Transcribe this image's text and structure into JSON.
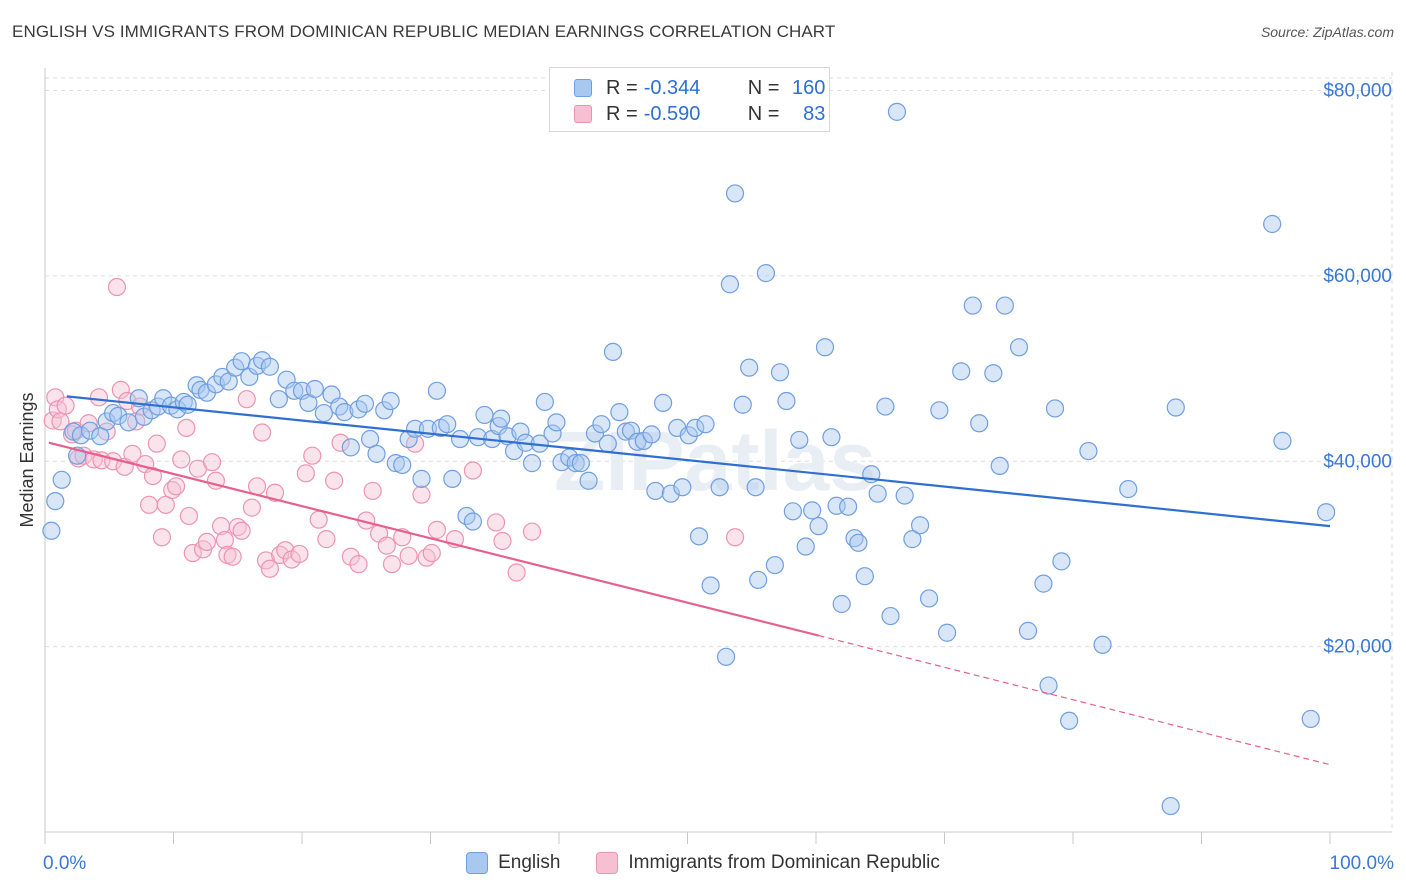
{
  "title": "ENGLISH VS IMMIGRANTS FROM DOMINICAN REPUBLIC MEDIAN EARNINGS CORRELATION CHART",
  "source": "Source: ZipAtlas.com",
  "watermark": "ZIPatlas",
  "legend": {
    "english": {
      "r_label": "R =",
      "r_value": "-0.344",
      "n_label": "N =",
      "n_value": "160"
    },
    "dominican": {
      "r_label": "R =",
      "r_value": "-0.590",
      "n_label": "N =",
      "n_value": "83"
    }
  },
  "bottom_legend": {
    "english": "English",
    "dominican": "Immigrants from Dominican Republic"
  },
  "colors": {
    "english_fill": "#a9c8f0",
    "english_stroke": "#6f9fe0",
    "english_line": "#2e6fd0",
    "dominican_fill": "#f6c0d2",
    "dominican_stroke": "#eb94b2",
    "dominican_line": "#e4618e",
    "axis_label": "#3a78d4",
    "grid": "#dcdcdc"
  },
  "chart_data": {
    "type": "scatter",
    "xlabel": "",
    "ylabel": "Median Earnings",
    "xlim": [
      0,
      100
    ],
    "ylim": [
      0,
      82000
    ],
    "x_tick_labels": {
      "min": "0.0%",
      "max": "100.0%"
    },
    "y_ticks": [
      20000,
      40000,
      60000,
      80000
    ],
    "y_tick_labels": [
      "$20,000",
      "$40,000",
      "$60,000",
      "$80,000"
    ],
    "series": [
      {
        "name": "English",
        "r": -0.344,
        "n": 160,
        "trend": {
          "x0": 1.7,
          "y0": 47000,
          "x1": 100,
          "y1": 33000
        },
        "points": [
          [
            0.5,
            32500
          ],
          [
            0.8,
            35700
          ],
          [
            1.3,
            38000
          ],
          [
            2.2,
            43200
          ],
          [
            2.5,
            40600
          ],
          [
            2.8,
            42800
          ],
          [
            3.5,
            43300
          ],
          [
            4.3,
            42700
          ],
          [
            4.8,
            44300
          ],
          [
            5.3,
            45200
          ],
          [
            5.7,
            44900
          ],
          [
            6.5,
            44200
          ],
          [
            7.3,
            46800
          ],
          [
            7.7,
            44800
          ],
          [
            8.3,
            45500
          ],
          [
            8.8,
            45900
          ],
          [
            9.2,
            46800
          ],
          [
            9.8,
            46000
          ],
          [
            10.3,
            45600
          ],
          [
            10.8,
            46400
          ],
          [
            11.1,
            46100
          ],
          [
            11.8,
            48200
          ],
          [
            12.1,
            47700
          ],
          [
            12.6,
            47400
          ],
          [
            13.3,
            48300
          ],
          [
            13.8,
            49100
          ],
          [
            14.3,
            48600
          ],
          [
            14.8,
            50100
          ],
          [
            15.3,
            50800
          ],
          [
            15.9,
            49100
          ],
          [
            16.5,
            50300
          ],
          [
            16.9,
            50900
          ],
          [
            17.5,
            50200
          ],
          [
            18.2,
            46700
          ],
          [
            18.8,
            48800
          ],
          [
            19.4,
            47600
          ],
          [
            20.0,
            47600
          ],
          [
            20.5,
            46300
          ],
          [
            21.0,
            47800
          ],
          [
            21.7,
            45200
          ],
          [
            22.3,
            47200
          ],
          [
            22.9,
            45900
          ],
          [
            23.3,
            45300
          ],
          [
            23.8,
            41500
          ],
          [
            24.4,
            45600
          ],
          [
            24.9,
            46200
          ],
          [
            25.3,
            42400
          ],
          [
            25.8,
            40800
          ],
          [
            26.4,
            45500
          ],
          [
            26.9,
            46500
          ],
          [
            27.3,
            39800
          ],
          [
            27.8,
            39600
          ],
          [
            28.3,
            42400
          ],
          [
            28.8,
            43500
          ],
          [
            29.3,
            38100
          ],
          [
            29.8,
            43500
          ],
          [
            30.5,
            47600
          ],
          [
            30.8,
            43600
          ],
          [
            31.3,
            44000
          ],
          [
            31.7,
            38100
          ],
          [
            32.3,
            42400
          ],
          [
            32.8,
            34100
          ],
          [
            33.3,
            33500
          ],
          [
            33.7,
            42600
          ],
          [
            34.2,
            45000
          ],
          [
            34.8,
            42400
          ],
          [
            35.3,
            43800
          ],
          [
            35.5,
            44600
          ],
          [
            36.0,
            42700
          ],
          [
            36.5,
            41100
          ],
          [
            37.0,
            43200
          ],
          [
            37.4,
            42000
          ],
          [
            37.9,
            39800
          ],
          [
            38.5,
            41900
          ],
          [
            38.9,
            46400
          ],
          [
            39.5,
            43000
          ],
          [
            39.8,
            44200
          ],
          [
            40.2,
            39900
          ],
          [
            40.8,
            40400
          ],
          [
            41.3,
            39800
          ],
          [
            41.7,
            39800
          ],
          [
            42.3,
            37900
          ],
          [
            42.8,
            43000
          ],
          [
            43.3,
            44000
          ],
          [
            43.8,
            41900
          ],
          [
            44.2,
            51800
          ],
          [
            44.7,
            45300
          ],
          [
            45.2,
            43200
          ],
          [
            45.6,
            43300
          ],
          [
            46.1,
            42100
          ],
          [
            46.6,
            42200
          ],
          [
            47.2,
            42900
          ],
          [
            47.5,
            36800
          ],
          [
            48.1,
            46300
          ],
          [
            48.7,
            36500
          ],
          [
            49.2,
            43600
          ],
          [
            49.6,
            37200
          ],
          [
            50.1,
            42800
          ],
          [
            50.6,
            43600
          ],
          [
            50.9,
            31900
          ],
          [
            51.4,
            44000
          ],
          [
            51.8,
            26600
          ],
          [
            52.5,
            37200
          ],
          [
            53.0,
            18900
          ],
          [
            53.3,
            59100
          ],
          [
            53.7,
            68900
          ],
          [
            54.3,
            46100
          ],
          [
            54.8,
            50100
          ],
          [
            55.3,
            37200
          ],
          [
            55.5,
            27200
          ],
          [
            56.1,
            60300
          ],
          [
            56.8,
            28800
          ],
          [
            57.2,
            49600
          ],
          [
            57.7,
            46500
          ],
          [
            58.2,
            34600
          ],
          [
            58.7,
            42300
          ],
          [
            59.2,
            30800
          ],
          [
            59.7,
            34700
          ],
          [
            60.2,
            33000
          ],
          [
            60.7,
            52300
          ],
          [
            61.2,
            42600
          ],
          [
            61.6,
            35200
          ],
          [
            62.0,
            24600
          ],
          [
            62.5,
            35100
          ],
          [
            63.0,
            31700
          ],
          [
            63.3,
            31200
          ],
          [
            63.8,
            27600
          ],
          [
            64.3,
            38600
          ],
          [
            64.8,
            36500
          ],
          [
            65.4,
            45900
          ],
          [
            65.8,
            23300
          ],
          [
            66.3,
            77700
          ],
          [
            66.9,
            36300
          ],
          [
            67.5,
            31600
          ],
          [
            68.1,
            33100
          ],
          [
            68.8,
            25200
          ],
          [
            69.6,
            45500
          ],
          [
            70.2,
            21500
          ],
          [
            71.3,
            49700
          ],
          [
            72.2,
            56800
          ],
          [
            72.7,
            44100
          ],
          [
            73.8,
            49500
          ],
          [
            74.3,
            39500
          ],
          [
            74.7,
            56800
          ],
          [
            75.8,
            52300
          ],
          [
            76.5,
            21700
          ],
          [
            77.7,
            26800
          ],
          [
            78.1,
            15800
          ],
          [
            78.6,
            45700
          ],
          [
            79.1,
            29200
          ],
          [
            79.7,
            12000
          ],
          [
            81.2,
            41100
          ],
          [
            82.3,
            20200
          ],
          [
            84.3,
            37000
          ],
          [
            87.6,
            2800
          ],
          [
            88.0,
            45800
          ],
          [
            95.5,
            65600
          ],
          [
            96.3,
            42200
          ],
          [
            98.5,
            12200
          ],
          [
            99.7,
            34500
          ]
        ]
      },
      {
        "name": "Immigrants from Dominican Republic",
        "r": -0.59,
        "n": 83,
        "trend": {
          "x0": 0.3,
          "y0": 42000,
          "x1": 60.2,
          "y1": 21200,
          "x_dash_end": 99.9,
          "y_dash_end": 7300
        },
        "points": [
          [
            0.6,
            44400
          ],
          [
            0.8,
            46900
          ],
          [
            1.0,
            45600
          ],
          [
            1.2,
            44300
          ],
          [
            1.6,
            46000
          ],
          [
            2.1,
            42900
          ],
          [
            2.4,
            43300
          ],
          [
            2.6,
            40300
          ],
          [
            3.0,
            40600
          ],
          [
            3.4,
            44100
          ],
          [
            3.8,
            40200
          ],
          [
            4.2,
            46900
          ],
          [
            4.4,
            40100
          ],
          [
            4.8,
            43200
          ],
          [
            5.3,
            40000
          ],
          [
            5.6,
            58800
          ],
          [
            5.9,
            47700
          ],
          [
            6.2,
            39400
          ],
          [
            6.4,
            46500
          ],
          [
            6.8,
            40800
          ],
          [
            7.1,
            44300
          ],
          [
            7.4,
            45900
          ],
          [
            7.8,
            39700
          ],
          [
            8.1,
            35300
          ],
          [
            8.4,
            38400
          ],
          [
            8.7,
            41900
          ],
          [
            9.1,
            31800
          ],
          [
            9.4,
            35300
          ],
          [
            9.9,
            36900
          ],
          [
            10.2,
            37300
          ],
          [
            10.6,
            40200
          ],
          [
            11.0,
            43600
          ],
          [
            11.2,
            34100
          ],
          [
            11.5,
            30100
          ],
          [
            11.9,
            39200
          ],
          [
            12.3,
            30500
          ],
          [
            12.6,
            31300
          ],
          [
            13.0,
            39900
          ],
          [
            13.3,
            37900
          ],
          [
            13.7,
            33000
          ],
          [
            14.0,
            31500
          ],
          [
            14.2,
            29900
          ],
          [
            14.6,
            29700
          ],
          [
            15.0,
            32900
          ],
          [
            15.3,
            32500
          ],
          [
            15.7,
            46700
          ],
          [
            16.1,
            35000
          ],
          [
            16.5,
            37300
          ],
          [
            16.9,
            43100
          ],
          [
            17.2,
            29300
          ],
          [
            17.5,
            28400
          ],
          [
            17.9,
            36600
          ],
          [
            18.3,
            29900
          ],
          [
            18.7,
            30400
          ],
          [
            19.2,
            29400
          ],
          [
            19.8,
            30000
          ],
          [
            20.3,
            38700
          ],
          [
            20.8,
            40600
          ],
          [
            21.3,
            33700
          ],
          [
            21.9,
            31600
          ],
          [
            22.5,
            37900
          ],
          [
            23.0,
            42000
          ],
          [
            23.8,
            29700
          ],
          [
            24.4,
            28900
          ],
          [
            25.0,
            33600
          ],
          [
            25.5,
            36800
          ],
          [
            26.0,
            32200
          ],
          [
            26.6,
            30900
          ],
          [
            27.0,
            28900
          ],
          [
            27.8,
            31800
          ],
          [
            28.3,
            29800
          ],
          [
            28.8,
            41900
          ],
          [
            29.3,
            36400
          ],
          [
            29.7,
            29600
          ],
          [
            30.1,
            30100
          ],
          [
            30.5,
            32600
          ],
          [
            31.9,
            31600
          ],
          [
            33.3,
            39000
          ],
          [
            35.1,
            33400
          ],
          [
            35.6,
            31400
          ],
          [
            36.7,
            28000
          ],
          [
            37.9,
            32400
          ],
          [
            53.7,
            31800
          ]
        ]
      }
    ]
  }
}
